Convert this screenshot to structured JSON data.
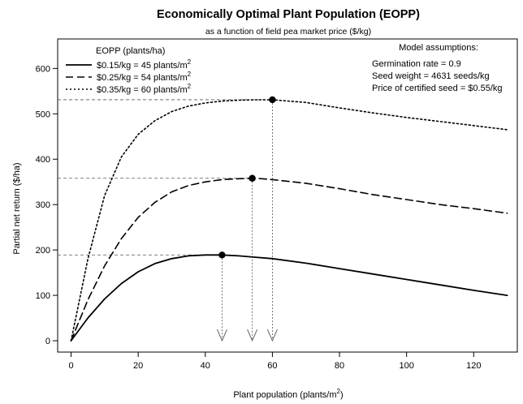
{
  "chart_data": {
    "type": "line",
    "title": "Economically Optimal Plant Population (EOPP)",
    "subtitle": "as a function of field pea market price ($/kg)",
    "xlabel": "Plant population (plants/m²)",
    "ylabel": "Partial net return ($/ha)",
    "xlim": [
      -4,
      133
    ],
    "ylim": [
      -25,
      665
    ],
    "x_ticks": [
      0,
      20,
      40,
      60,
      80,
      100,
      120
    ],
    "y_ticks": [
      0,
      100,
      200,
      300,
      400,
      500,
      600
    ],
    "grid": false,
    "legend": {
      "title": "EOPP (plants/ha)",
      "position": "top-left",
      "entries": [
        {
          "label": "$0.15/kg = 45 plants/m",
          "sup": "2",
          "dash": "solid"
        },
        {
          "label": "$0.25/kg = 54 plants/m",
          "sup": "2",
          "dash": "dashed"
        },
        {
          "label": "$0.35/kg = 60 plants/m",
          "sup": "2",
          "dash": "dotted"
        }
      ]
    },
    "annotations": {
      "title": "Model assumptions:",
      "lines": [
        "Germination rate = 0.9",
        "Seed weight = 4631 seeds/kg",
        "Price of certified seed = $0.55/kg"
      ],
      "position": "top-right"
    },
    "series": [
      {
        "name": "$0.15/kg = 45 plants/m2",
        "dash": "solid",
        "optimum": {
          "x": 45,
          "y": 189
        },
        "points": [
          [
            0,
            0
          ],
          [
            5,
            50
          ],
          [
            10,
            92
          ],
          [
            15,
            126
          ],
          [
            20,
            152
          ],
          [
            25,
            170
          ],
          [
            30,
            181
          ],
          [
            35,
            187
          ],
          [
            40,
            189
          ],
          [
            45,
            189
          ],
          [
            50,
            187
          ],
          [
            55,
            184
          ],
          [
            60,
            181
          ],
          [
            70,
            171
          ],
          [
            80,
            159
          ],
          [
            90,
            147
          ],
          [
            100,
            135
          ],
          [
            110,
            123
          ],
          [
            120,
            111
          ],
          [
            130,
            100
          ]
        ]
      },
      {
        "name": "$0.25/kg = 54 plants/m2",
        "dash": "dashed",
        "optimum": {
          "x": 54,
          "y": 358
        },
        "points": [
          [
            0,
            0
          ],
          [
            5,
            90
          ],
          [
            10,
            165
          ],
          [
            15,
            225
          ],
          [
            20,
            272
          ],
          [
            25,
            305
          ],
          [
            30,
            328
          ],
          [
            35,
            342
          ],
          [
            40,
            350
          ],
          [
            45,
            355
          ],
          [
            50,
            357
          ],
          [
            55,
            358
          ],
          [
            60,
            355
          ],
          [
            70,
            347
          ],
          [
            80,
            335
          ],
          [
            90,
            322
          ],
          [
            100,
            311
          ],
          [
            110,
            300
          ],
          [
            120,
            291
          ],
          [
            130,
            281
          ]
        ]
      },
      {
        "name": "$0.35/kg = 60 plants/m2",
        "dash": "dotted",
        "optimum": {
          "x": 60,
          "y": 531
        },
        "points": [
          [
            0,
            0
          ],
          [
            5,
            180
          ],
          [
            10,
            320
          ],
          [
            15,
            405
          ],
          [
            20,
            455
          ],
          [
            25,
            485
          ],
          [
            30,
            505
          ],
          [
            35,
            517
          ],
          [
            40,
            524
          ],
          [
            45,
            528
          ],
          [
            50,
            530
          ],
          [
            55,
            531
          ],
          [
            60,
            531
          ],
          [
            70,
            525
          ],
          [
            80,
            513
          ],
          [
            90,
            502
          ],
          [
            100,
            492
          ],
          [
            110,
            483
          ],
          [
            120,
            474
          ],
          [
            130,
            465
          ]
        ]
      }
    ]
  }
}
